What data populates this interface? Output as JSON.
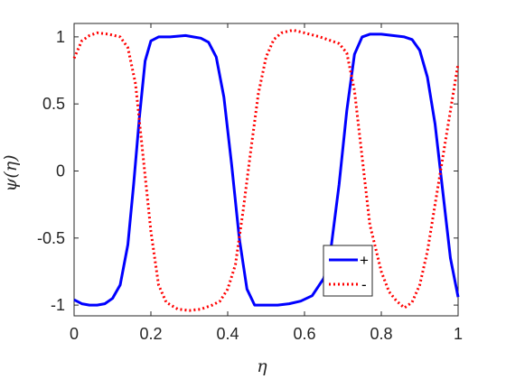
{
  "chart_data": {
    "type": "line",
    "xlabel": "η",
    "ylabel": "ψ(η)",
    "xlim": [
      0,
      1
    ],
    "ylim": [
      -1.08,
      1.1
    ],
    "grid": false,
    "legend_placement": "bottom-right",
    "x_ticks": [
      0,
      0.2,
      0.4,
      0.6,
      0.8,
      1
    ],
    "x_tick_labels": [
      "0",
      "0.2",
      "0.4",
      "0.6",
      "0.8",
      "1"
    ],
    "y_ticks": [
      -1,
      -0.5,
      0,
      0.5,
      1
    ],
    "y_tick_labels": [
      "-1",
      "-0.5",
      "0",
      "0.5",
      "1"
    ],
    "series": [
      {
        "name": "+",
        "color": "#0000ff",
        "style": "solid",
        "points": [
          [
            0,
            -0.96
          ],
          [
            0.02,
            -0.99
          ],
          [
            0.04,
            -1.0
          ],
          [
            0.06,
            -1.0
          ],
          [
            0.08,
            -0.99
          ],
          [
            0.1,
            -0.95
          ],
          [
            0.12,
            -0.85
          ],
          [
            0.14,
            -0.55
          ],
          [
            0.155,
            -0.1
          ],
          [
            0.17,
            0.4
          ],
          [
            0.185,
            0.82
          ],
          [
            0.2,
            0.97
          ],
          [
            0.22,
            1.0
          ],
          [
            0.25,
            1.0
          ],
          [
            0.29,
            1.01
          ],
          [
            0.31,
            1.0
          ],
          [
            0.33,
            0.99
          ],
          [
            0.35,
            0.96
          ],
          [
            0.37,
            0.85
          ],
          [
            0.39,
            0.55
          ],
          [
            0.41,
            0.05
          ],
          [
            0.43,
            -0.5
          ],
          [
            0.45,
            -0.88
          ],
          [
            0.47,
            -1.0
          ],
          [
            0.5,
            -1.0
          ],
          [
            0.53,
            -1.0
          ],
          [
            0.56,
            -0.99
          ],
          [
            0.59,
            -0.97
          ],
          [
            0.62,
            -0.93
          ],
          [
            0.65,
            -0.8
          ],
          [
            0.67,
            -0.55
          ],
          [
            0.69,
            -0.1
          ],
          [
            0.71,
            0.45
          ],
          [
            0.73,
            0.87
          ],
          [
            0.75,
            1.0
          ],
          [
            0.77,
            1.02
          ],
          [
            0.8,
            1.02
          ],
          [
            0.83,
            1.01
          ],
          [
            0.86,
            1.0
          ],
          [
            0.88,
            0.98
          ],
          [
            0.9,
            0.9
          ],
          [
            0.92,
            0.7
          ],
          [
            0.94,
            0.35
          ],
          [
            0.96,
            -0.15
          ],
          [
            0.98,
            -0.65
          ],
          [
            1.0,
            -0.94
          ]
        ]
      },
      {
        "name": "-",
        "color": "#ff0000",
        "style": "dotted",
        "points": [
          [
            0,
            0.84
          ],
          [
            0.02,
            0.97
          ],
          [
            0.04,
            1.01
          ],
          [
            0.06,
            1.03
          ],
          [
            0.09,
            1.02
          ],
          [
            0.12,
            1.0
          ],
          [
            0.14,
            0.92
          ],
          [
            0.16,
            0.65
          ],
          [
            0.18,
            0.1
          ],
          [
            0.2,
            -0.45
          ],
          [
            0.22,
            -0.85
          ],
          [
            0.24,
            -0.98
          ],
          [
            0.27,
            -1.03
          ],
          [
            0.3,
            -1.04
          ],
          [
            0.33,
            -1.03
          ],
          [
            0.36,
            -1.0
          ],
          [
            0.38,
            -0.97
          ],
          [
            0.4,
            -0.88
          ],
          [
            0.42,
            -0.7
          ],
          [
            0.44,
            -0.3
          ],
          [
            0.46,
            0.15
          ],
          [
            0.48,
            0.58
          ],
          [
            0.5,
            0.85
          ],
          [
            0.52,
            0.98
          ],
          [
            0.54,
            1.03
          ],
          [
            0.57,
            1.05
          ],
          [
            0.6,
            1.03
          ],
          [
            0.64,
            1.0
          ],
          [
            0.67,
            0.97
          ],
          [
            0.69,
            0.95
          ],
          [
            0.71,
            0.88
          ],
          [
            0.73,
            0.6
          ],
          [
            0.75,
            0.1
          ],
          [
            0.77,
            -0.4
          ],
          [
            0.8,
            -0.75
          ],
          [
            0.82,
            -0.9
          ],
          [
            0.84,
            -0.97
          ],
          [
            0.86,
            -1.02
          ],
          [
            0.88,
            -0.98
          ],
          [
            0.9,
            -0.85
          ],
          [
            0.92,
            -0.6
          ],
          [
            0.94,
            -0.25
          ],
          [
            0.96,
            0.1
          ],
          [
            0.98,
            0.45
          ],
          [
            1.0,
            0.8
          ]
        ]
      }
    ]
  }
}
